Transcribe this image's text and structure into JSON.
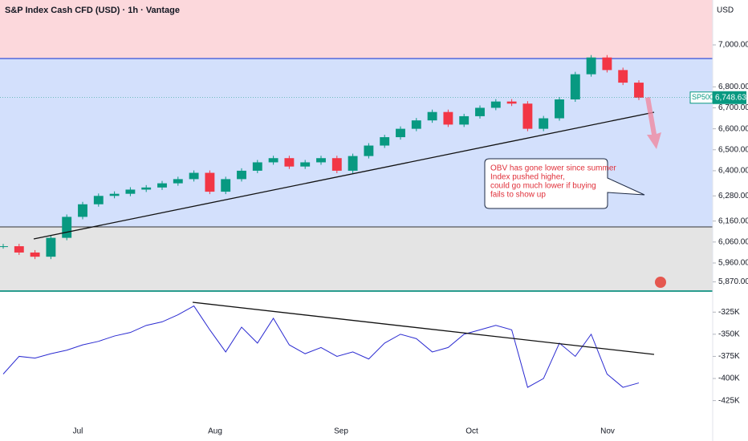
{
  "chart_data": [
    {
      "type": "candlestick",
      "title": "S&P Index Cash CFD (USD) · 1h · Vantage",
      "currency": "USD",
      "values": [
        6040,
        6010,
        5990,
        6080,
        6180,
        6240,
        6280,
        6290,
        6310,
        6320,
        6340,
        6360,
        6390,
        6300,
        6360,
        6400,
        6440,
        6460,
        6420,
        6440,
        6460,
        6400,
        6470,
        6520,
        6560,
        6600,
        6640,
        6680,
        6620,
        6660,
        6700,
        6730,
        6720,
        6600,
        6650,
        6740,
        6860,
        6940,
        6880,
        6820,
        6748.63
      ],
      "up_color": "#089981",
      "down_color": "#f23645",
      "ylim": [
        5830,
        7130
      ],
      "yticks": [
        {
          "value": 7000,
          "label": "7,000.00"
        },
        {
          "value": 6800,
          "label": "6,800.00"
        },
        {
          "value": 6700,
          "label": "6,700.00"
        },
        {
          "value": 6600,
          "label": "6,600.00"
        },
        {
          "value": 6500,
          "label": "6,500.00"
        },
        {
          "value": 6400,
          "label": "6,400.00"
        },
        {
          "value": 6280,
          "label": "6,280.00"
        },
        {
          "value": 6160,
          "label": "6,160.00"
        },
        {
          "value": 6060,
          "label": "6,060.00"
        },
        {
          "value": 5960,
          "label": "5,960.00"
        },
        {
          "value": 5870,
          "label": "5,870.00"
        }
      ],
      "price_tag": {
        "name": "SP500",
        "value": 6748.63,
        "label": "6,748.63"
      },
      "annotation": [
        "OBV has gone lower since summer",
        "Index pushed higher,",
        "could go much lower if buying",
        "fails to show up"
      ]
    },
    {
      "type": "line",
      "values": [
        -395000,
        -375000,
        -377000,
        -372000,
        -368000,
        -362000,
        -358000,
        -352000,
        -348000,
        -340000,
        -336000,
        -328000,
        -318000,
        -345000,
        -370000,
        -342000,
        -360000,
        -332000,
        -362000,
        -372000,
        -365000,
        -375000,
        -370000,
        -378000,
        -360000,
        -350000,
        -355000,
        -370000,
        -365000,
        -350000,
        -345000,
        -340000,
        -345000,
        -410000,
        -400000,
        -360000,
        -375000,
        -350000,
        -395000,
        -410000,
        -405000
      ],
      "color": "#2b2bd1",
      "ylim": [
        -448000,
        -303000
      ],
      "yticks": [
        {
          "value": -325000,
          "label": "-325K"
        },
        {
          "value": -350000,
          "label": "-350K"
        },
        {
          "value": -375000,
          "label": "-375K"
        },
        {
          "value": -400000,
          "label": "-400K"
        },
        {
          "value": -425000,
          "label": "-425K"
        }
      ],
      "xtick_labels": [
        "Jul",
        "Aug",
        "Sep",
        "Oct",
        "Nov"
      ]
    }
  ]
}
